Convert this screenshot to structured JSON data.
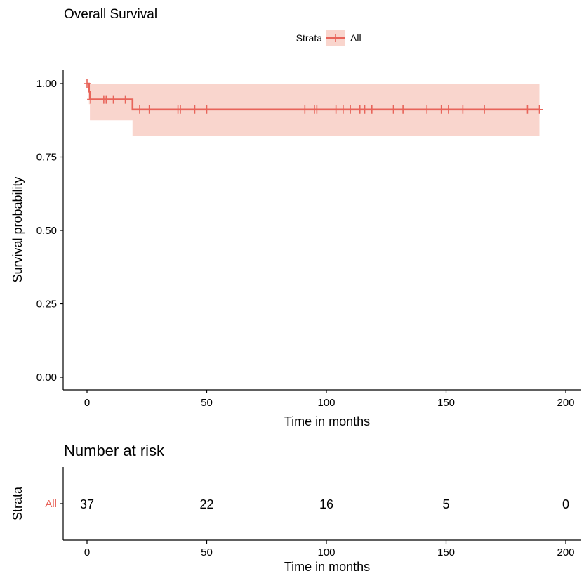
{
  "title": "Overall Survival",
  "legend": {
    "title": "Strata",
    "label": "All",
    "position": "top"
  },
  "colors": {
    "curve": "#e8645a",
    "ci_fill": "#f9d5cd",
    "axis": "#000000"
  },
  "chart_data": [
    {
      "type": "line",
      "title": "Overall Survival",
      "xlabel": "Time in months",
      "ylabel": "Survival probability",
      "xlim": [
        0,
        200
      ],
      "ylim": [
        0,
        1
      ],
      "x_ticks": [
        0,
        50,
        100,
        150,
        200
      ],
      "y_ticks": [
        0,
        0.25,
        0.5,
        0.75,
        1
      ],
      "x_tick_labels": [
        "0",
        "50",
        "100",
        "150",
        "200"
      ],
      "y_tick_labels": [
        "0.00",
        "0.25",
        "0.50",
        "0.75",
        "1.00"
      ],
      "grid": false,
      "series": [
        {
          "name": "All",
          "step_x": [
            0,
            0.8,
            1.2,
            19,
            189
          ],
          "step_y": [
            1.0,
            0.973,
            0.946,
            0.912,
            0.912
          ],
          "ci_lower": [
            1.0,
            0.93,
            0.875,
            0.823,
            0.823
          ],
          "ci_upper": [
            1.0,
            1.0,
            1.0,
            1.0,
            1.0
          ],
          "censor_times": [
            0,
            1.5,
            7,
            8,
            11,
            16,
            22,
            26,
            38,
            39,
            45,
            50,
            91,
            95,
            96,
            104,
            107,
            110,
            114,
            116,
            119,
            128,
            132,
            142,
            148,
            151,
            157,
            166,
            184,
            189
          ]
        }
      ]
    },
    {
      "type": "table",
      "title": "Number at risk",
      "xlabel": "Time in months",
      "ylabel": "Strata",
      "xlim": [
        0,
        200
      ],
      "x_ticks": [
        0,
        50,
        100,
        150,
        200
      ],
      "x_tick_labels": [
        "0",
        "50",
        "100",
        "150",
        "200"
      ],
      "rows": [
        {
          "name": "All",
          "times": [
            0,
            50,
            100,
            150,
            200
          ],
          "counts": [
            "37",
            "22",
            "16",
            "5",
            "0"
          ]
        }
      ]
    }
  ]
}
